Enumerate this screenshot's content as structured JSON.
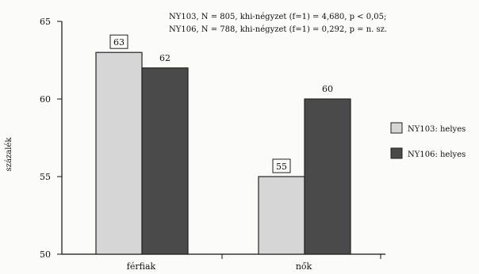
{
  "chart_data": {
    "type": "bar",
    "categories": [
      "férfiak",
      "nők"
    ],
    "series": [
      {
        "name": "NY103: helyes",
        "values": [
          63,
          55
        ],
        "color": "#d6d6d6",
        "boxed_labels": true
      },
      {
        "name": "NY106: helyes",
        "values": [
          62,
          60
        ],
        "color": "#4a4a4a",
        "boxed_labels": false
      }
    ],
    "data_labels": [
      [
        "63",
        "55"
      ],
      [
        "62",
        "60"
      ]
    ],
    "ylabel": "százalék",
    "ylim": [
      50,
      65
    ],
    "yticks": [
      "50",
      "55",
      "60",
      "65"
    ],
    "notes": [
      "NY103, N = 805, khi-négyzet (f=1) = 4,680, p < 0,05;",
      "NY106, N = 788, khi-négyzet (f=1) = 0,292, p = n. sz."
    ],
    "legend_position": "right",
    "grid": false
  }
}
